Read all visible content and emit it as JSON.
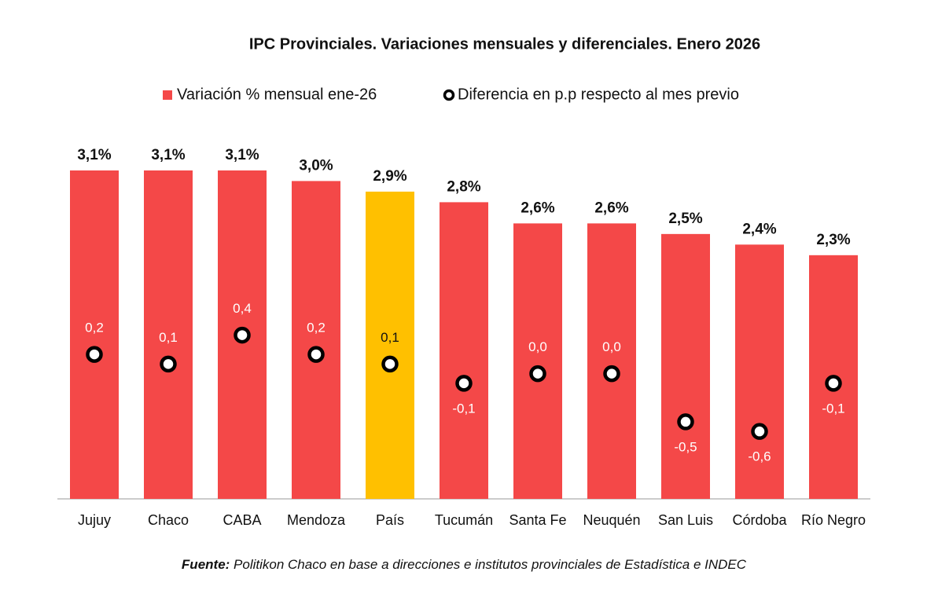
{
  "chart_data": {
    "type": "bar",
    "title": "IPC Provinciales. Variaciones mensuales y diferenciales. Enero 2026",
    "categories": [
      "Jujuy",
      "Chaco",
      "CABA",
      "Mendoza",
      "País",
      "Tucumán",
      "Santa Fe",
      "Neuquén",
      "San Luis",
      "Córdoba",
      "Río Negro"
    ],
    "series": [
      {
        "name": "Variación % mensual ene-26",
        "type": "bar",
        "color": "#f44848",
        "colors": [
          "#f44848",
          "#f44848",
          "#f44848",
          "#f44848",
          "#ffc000",
          "#f44848",
          "#f44848",
          "#f44848",
          "#f44848",
          "#f44848",
          "#f44848"
        ],
        "values": [
          3.1,
          3.1,
          3.1,
          3.0,
          2.9,
          2.8,
          2.6,
          2.6,
          2.5,
          2.4,
          2.3
        ],
        "value_labels": [
          "3,1%",
          "3,1%",
          "3,1%",
          "3,0%",
          "2,9%",
          "2,8%",
          "2,6%",
          "2,6%",
          "2,5%",
          "2,4%",
          "2,3%"
        ]
      },
      {
        "name": "Diferencia en p.p respecto al mes previo",
        "type": "dot",
        "axis": "y2",
        "color": "#000000",
        "values": [
          0.2,
          0.1,
          0.4,
          0.2,
          0.1,
          -0.1,
          0.0,
          0.0,
          -0.5,
          -0.6,
          -0.1
        ],
        "value_labels": [
          "0,2",
          "0,1",
          "0,4",
          "0,2",
          "0,1",
          "-0,1",
          "0,0",
          "0,0",
          "-0,5",
          "-0,6",
          "-0,1"
        ]
      }
    ],
    "ylim": [
      0,
      3.5
    ],
    "y2lim": [
      -1.3,
      2.55
    ],
    "source_label": "Fuente:",
    "source": "Politikon Chaco en base a direcciones e institutos provinciales de Estadística e INDEC"
  }
}
